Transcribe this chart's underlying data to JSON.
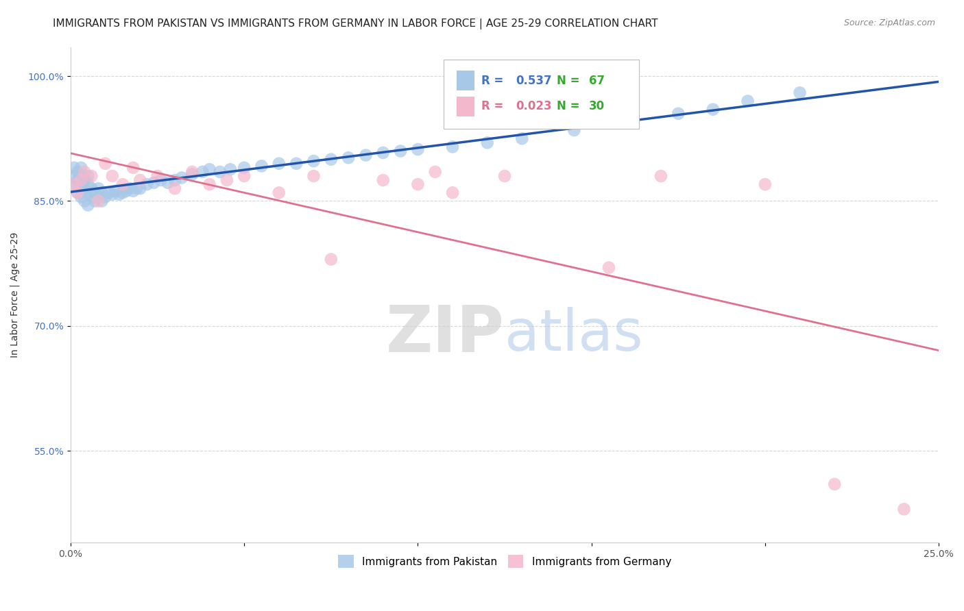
{
  "title": "IMMIGRANTS FROM PAKISTAN VS IMMIGRANTS FROM GERMANY IN LABOR FORCE | AGE 25-29 CORRELATION CHART",
  "source": "Source: ZipAtlas.com",
  "ylabel_label": "In Labor Force | Age 25-29",
  "xlim": [
    0.0,
    0.25
  ],
  "ylim": [
    0.44,
    1.035
  ],
  "xticks": [
    0.0,
    0.05,
    0.1,
    0.15,
    0.2,
    0.25
  ],
  "yticks": [
    0.55,
    0.7,
    0.85,
    1.0
  ],
  "ytick_labels": [
    "55.0%",
    "70.0%",
    "85.0%",
    "100.0%"
  ],
  "xtick_labels": [
    "0.0%",
    "",
    "",
    "",
    "",
    "25.0%"
  ],
  "pakistan_color": "#a8c8e8",
  "germany_color": "#f4b8cc",
  "pakistan_R": 0.537,
  "pakistan_N": 67,
  "germany_R": 0.023,
  "germany_N": 30,
  "legend_R_color_pak": "#4472c4",
  "legend_R_color_ger": "#e07090",
  "legend_N_color": "#38a832",
  "pakistan_line_color": "#2255aa",
  "germany_line_color": "#e07090",
  "pakistan_x": [
    0.001,
    0.001,
    0.001,
    0.002,
    0.002,
    0.002,
    0.003,
    0.003,
    0.003,
    0.003,
    0.004,
    0.004,
    0.004,
    0.005,
    0.005,
    0.005,
    0.005,
    0.006,
    0.006,
    0.007,
    0.007,
    0.008,
    0.008,
    0.009,
    0.009,
    0.01,
    0.011,
    0.012,
    0.013,
    0.014,
    0.015,
    0.016,
    0.017,
    0.018,
    0.019,
    0.02,
    0.022,
    0.024,
    0.026,
    0.028,
    0.03,
    0.032,
    0.035,
    0.038,
    0.04,
    0.043,
    0.046,
    0.05,
    0.055,
    0.06,
    0.065,
    0.07,
    0.075,
    0.08,
    0.085,
    0.09,
    0.095,
    0.1,
    0.11,
    0.12,
    0.13,
    0.145,
    0.16,
    0.175,
    0.185,
    0.195,
    0.21
  ],
  "pakistan_y": [
    0.87,
    0.88,
    0.89,
    0.86,
    0.875,
    0.885,
    0.855,
    0.87,
    0.88,
    0.89,
    0.85,
    0.865,
    0.875,
    0.845,
    0.86,
    0.87,
    0.88,
    0.855,
    0.865,
    0.85,
    0.86,
    0.855,
    0.865,
    0.85,
    0.86,
    0.855,
    0.86,
    0.858,
    0.862,
    0.858,
    0.86,
    0.862,
    0.865,
    0.862,
    0.865,
    0.865,
    0.87,
    0.872,
    0.875,
    0.872,
    0.875,
    0.878,
    0.882,
    0.885,
    0.888,
    0.885,
    0.888,
    0.89,
    0.892,
    0.895,
    0.895,
    0.898,
    0.9,
    0.902,
    0.905,
    0.908,
    0.91,
    0.912,
    0.915,
    0.92,
    0.925,
    0.935,
    0.945,
    0.955,
    0.96,
    0.97,
    0.98
  ],
  "germany_x": [
    0.001,
    0.002,
    0.003,
    0.004,
    0.006,
    0.008,
    0.01,
    0.012,
    0.015,
    0.018,
    0.02,
    0.025,
    0.03,
    0.035,
    0.04,
    0.045,
    0.05,
    0.06,
    0.07,
    0.075,
    0.09,
    0.1,
    0.105,
    0.11,
    0.125,
    0.155,
    0.17,
    0.2,
    0.22,
    0.24
  ],
  "germany_y": [
    0.87,
    0.86,
    0.875,
    0.885,
    0.88,
    0.85,
    0.895,
    0.88,
    0.87,
    0.89,
    0.875,
    0.88,
    0.865,
    0.885,
    0.87,
    0.875,
    0.88,
    0.86,
    0.88,
    0.78,
    0.875,
    0.87,
    0.885,
    0.86,
    0.88,
    0.77,
    0.88,
    0.87,
    0.51,
    0.48
  ],
  "watermark_zip": "ZIP",
  "watermark_atlas": "atlas",
  "watermark_zip_color": "#cccccc",
  "watermark_atlas_color": "#aac8e8",
  "background_color": "#ffffff",
  "grid_color": "#cccccc",
  "title_fontsize": 11,
  "axis_tick_fontsize": 10,
  "ylabel_fontsize": 10
}
